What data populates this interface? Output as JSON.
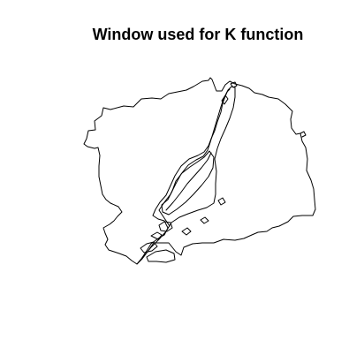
{
  "title": "Window used for K function",
  "colors": {
    "background": "#ffffff",
    "outline": "#000000"
  }
}
